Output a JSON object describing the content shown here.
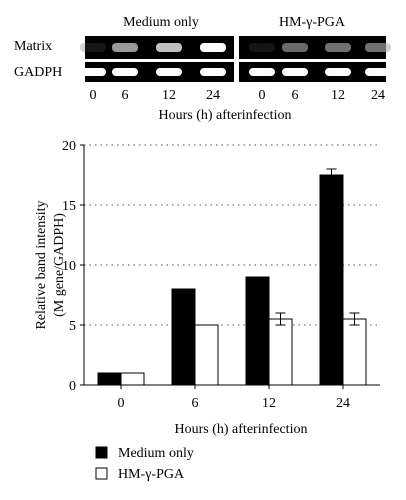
{
  "gel": {
    "groups": [
      "Medium only",
      "HM-γ-PGA"
    ],
    "rows": [
      "Matrix",
      "GADPH"
    ],
    "lane_labels": [
      "0",
      "6",
      "12",
      "24",
      "0",
      "6",
      "12",
      "24"
    ],
    "xlabel": "Hours (h) afterinfection",
    "band_strength": {
      "Matrix": [
        0.15,
        0.75,
        0.85,
        1.0,
        0.12,
        0.6,
        0.62,
        0.62
      ],
      "GADPH": [
        1.0,
        1.0,
        1.0,
        1.0,
        1.0,
        1.0,
        1.0,
        1.0
      ]
    }
  },
  "chart_data": {
    "type": "bar",
    "categories": [
      "0",
      "6",
      "12",
      "24"
    ],
    "series": [
      {
        "name": "Medium only",
        "values": [
          1,
          8,
          9,
          17.5
        ],
        "errors": [
          0,
          0,
          0,
          0.5
        ],
        "color": "#000000"
      },
      {
        "name": "HM-γ-PGA",
        "values": [
          1,
          5,
          5.5,
          5.5
        ],
        "errors": [
          0,
          0,
          0.5,
          0.5
        ],
        "color": "#ffffff"
      }
    ],
    "ylabel_line1": "Relative band intensity",
    "ylabel_line2": "(M gene/GADPH)",
    "xlabel": "Hours (h) afterinfection",
    "ylim": [
      0,
      20
    ],
    "yticks": [
      "0",
      "5",
      "10",
      "15",
      "20"
    ],
    "grid": true,
    "legend_placement": "bottom-left"
  }
}
